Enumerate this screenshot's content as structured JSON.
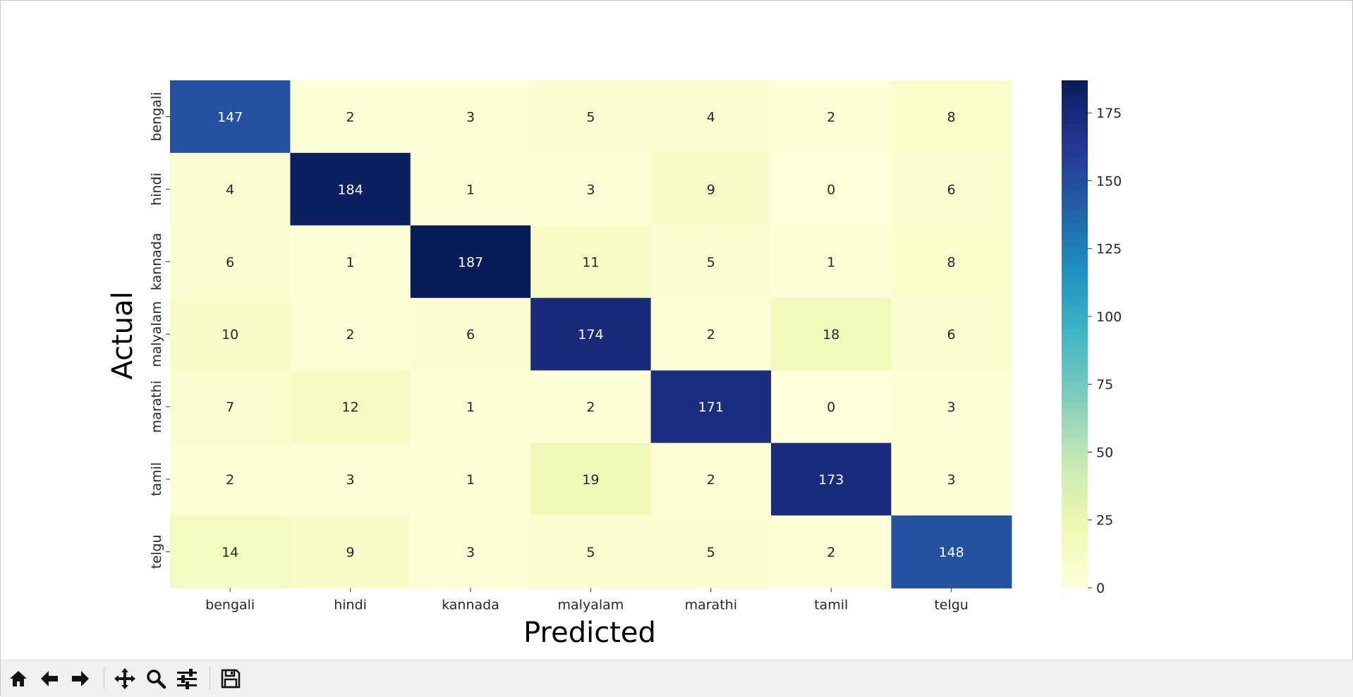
{
  "window": {
    "toolbar": [
      {
        "name": "home-button",
        "icon": "home-icon"
      },
      {
        "name": "back-button",
        "icon": "arrow-left-icon"
      },
      {
        "name": "forward-button",
        "icon": "arrow-right-icon"
      },
      {
        "name": "pan-button",
        "icon": "move-icon"
      },
      {
        "name": "zoom-button",
        "icon": "search-icon"
      },
      {
        "name": "configure-subplots-button",
        "icon": "sliders-icon"
      },
      {
        "name": "save-button",
        "icon": "save-icon"
      }
    ]
  },
  "chart_data": {
    "type": "heatmap",
    "xlabel": "Predicted",
    "ylabel": "Actual",
    "x_categories": [
      "bengali",
      "hindi",
      "kannada",
      "malyalam",
      "marathi",
      "tamil",
      "telgu"
    ],
    "y_categories": [
      "bengali",
      "hindi",
      "kannada",
      "malyalam",
      "marathi",
      "tamil",
      "telgu"
    ],
    "values": [
      [
        147,
        2,
        3,
        5,
        4,
        2,
        8
      ],
      [
        4,
        184,
        1,
        3,
        9,
        0,
        6
      ],
      [
        6,
        1,
        187,
        11,
        5,
        1,
        8
      ],
      [
        10,
        2,
        6,
        174,
        2,
        18,
        6
      ],
      [
        7,
        12,
        1,
        2,
        171,
        0,
        3
      ],
      [
        2,
        3,
        1,
        19,
        2,
        173,
        3
      ],
      [
        14,
        9,
        3,
        5,
        5,
        2,
        148
      ]
    ],
    "colormap": "YlGnBu",
    "colorbar": {
      "range": [
        0,
        187
      ],
      "ticks": [
        0,
        25,
        50,
        75,
        100,
        125,
        150,
        175
      ]
    },
    "annotations": true,
    "grid": false
  }
}
